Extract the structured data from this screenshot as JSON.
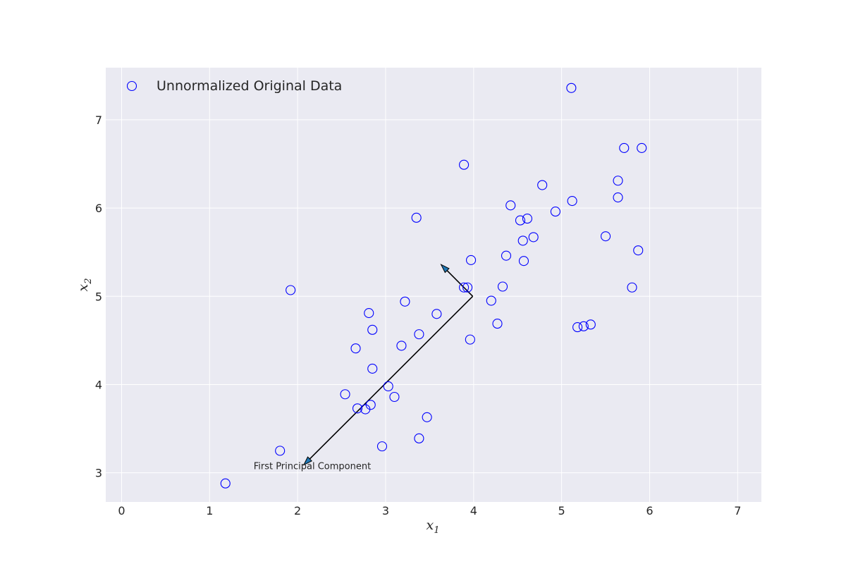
{
  "chart_data": {
    "type": "scatter",
    "title": "",
    "xlabel": "x",
    "xlabel_sub": "1",
    "ylabel": "x",
    "ylabel_sub": "2",
    "xlim": [
      -0.18,
      7.27
    ],
    "ylim": [
      2.67,
      7.59
    ],
    "xticks": [
      0,
      1,
      2,
      3,
      4,
      5,
      6,
      7
    ],
    "yticks": [
      3,
      4,
      5,
      6,
      7
    ],
    "grid": true,
    "legend": {
      "placement": "top-left",
      "entries": [
        "Unnormalized Original Data"
      ]
    },
    "colors": {
      "background": "#eaeaf2",
      "grid": "#ffffff",
      "marker": "#0000ff",
      "arrow_fill": "#1f77b4"
    },
    "series": [
      {
        "name": "Unnormalized Original Data",
        "marker": "open-circle",
        "points": [
          [
            1.18,
            2.88
          ],
          [
            1.8,
            3.25
          ],
          [
            1.92,
            5.07
          ],
          [
            2.54,
            3.89
          ],
          [
            2.66,
            4.41
          ],
          [
            2.68,
            3.73
          ],
          [
            2.77,
            3.72
          ],
          [
            2.81,
            4.81
          ],
          [
            2.83,
            3.77
          ],
          [
            2.85,
            4.62
          ],
          [
            2.85,
            4.18
          ],
          [
            2.96,
            3.3
          ],
          [
            3.03,
            3.98
          ],
          [
            3.1,
            3.86
          ],
          [
            3.18,
            4.44
          ],
          [
            3.22,
            4.94
          ],
          [
            3.35,
            5.89
          ],
          [
            3.38,
            4.57
          ],
          [
            3.38,
            3.39
          ],
          [
            3.47,
            3.63
          ],
          [
            3.58,
            4.8
          ],
          [
            3.89,
            6.49
          ],
          [
            3.89,
            5.1
          ],
          [
            3.93,
            5.1
          ],
          [
            3.96,
            4.51
          ],
          [
            3.97,
            5.41
          ],
          [
            4.2,
            4.95
          ],
          [
            4.27,
            4.69
          ],
          [
            4.33,
            5.11
          ],
          [
            4.37,
            5.46
          ],
          [
            4.42,
            6.03
          ],
          [
            4.53,
            5.86
          ],
          [
            4.56,
            5.63
          ],
          [
            4.57,
            5.4
          ],
          [
            4.61,
            5.88
          ],
          [
            4.68,
            5.67
          ],
          [
            4.78,
            6.26
          ],
          [
            4.93,
            5.96
          ],
          [
            5.11,
            7.36
          ],
          [
            5.12,
            6.08
          ],
          [
            5.18,
            4.65
          ],
          [
            5.25,
            4.66
          ],
          [
            5.33,
            4.68
          ],
          [
            5.5,
            5.68
          ],
          [
            5.64,
            6.31
          ],
          [
            5.64,
            6.12
          ],
          [
            5.71,
            6.68
          ],
          [
            5.8,
            5.1
          ],
          [
            5.87,
            5.52
          ],
          [
            5.91,
            6.68
          ]
        ]
      }
    ],
    "arrows": [
      {
        "from": [
          3.99,
          5.0
        ],
        "to": [
          2.07,
          3.09
        ]
      },
      {
        "from": [
          3.99,
          5.0
        ],
        "to": [
          3.63,
          5.36
        ]
      }
    ],
    "annotations": [
      {
        "text": "First Principal Component",
        "x": 1.5,
        "y": 3.04
      }
    ]
  }
}
